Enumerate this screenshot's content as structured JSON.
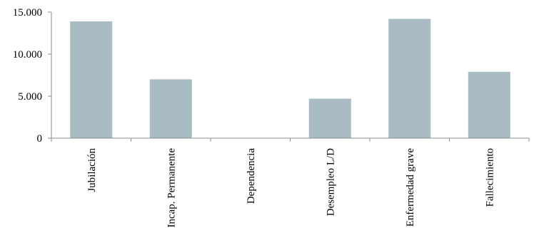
{
  "chart_data": {
    "type": "bar",
    "title": "",
    "xlabel": "",
    "ylabel": "",
    "categories": [
      "Jubilación",
      "Incap. Permanente",
      "Dependencia",
      "Desempleo L/D",
      "Enfermedad grave",
      "Fallecimiento"
    ],
    "values": [
      13900,
      7000,
      0,
      4700,
      14200,
      7900
    ],
    "ylim": [
      0,
      15000
    ],
    "yticks": [
      0,
      5000,
      10000,
      15000
    ],
    "ytick_labels": [
      "0",
      "5.000",
      "10.000",
      "15.000"
    ],
    "grid": false,
    "legend": "none",
    "bar_color": "#a9bcc4",
    "axis_color": "#8c8c8c"
  }
}
